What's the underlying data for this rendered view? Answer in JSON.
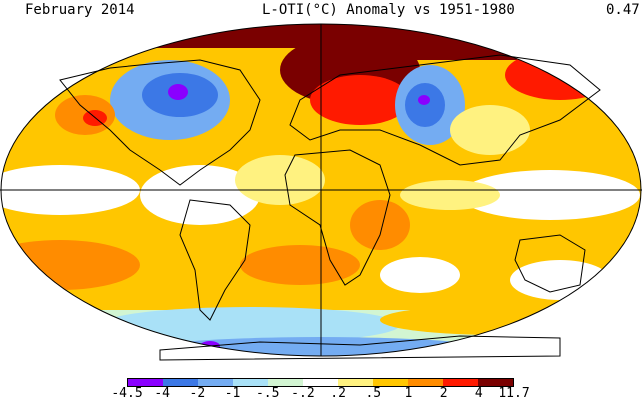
{
  "header": {
    "date_label": "February 2014",
    "title": "L-OTI(°C) Anomaly vs 1951-1980",
    "global_mean": "0.47"
  },
  "legend": {
    "colors": [
      "#8a00ff",
      "#3c78e6",
      "#74acf2",
      "#a9e1f7",
      "#d2f5d2",
      "#ffffff",
      "#fff280",
      "#ffc600",
      "#ff8c00",
      "#ff1a00",
      "#7a0000"
    ],
    "tick_labels": [
      "-4.5",
      "-4",
      "-2",
      "-1",
      "-.5",
      "-.2",
      ".2",
      ".5",
      "1",
      "2",
      "4",
      "11.7"
    ]
  },
  "colors": {
    "ocean_neutral": "#ffffff",
    "missing_data": "#969696",
    "coast": "#000000"
  }
}
